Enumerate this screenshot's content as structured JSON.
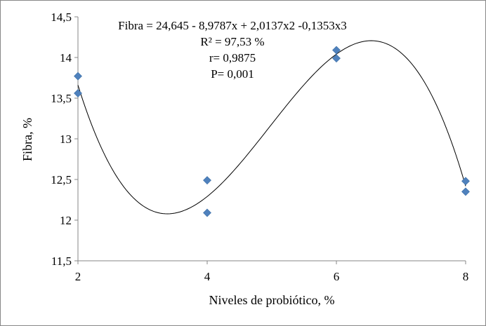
{
  "chart_data": {
    "type": "scatter",
    "xlabel": "Niveles de probiótico, %",
    "ylabel": "Fibra, %",
    "xlim": [
      2,
      8
    ],
    "ylim": [
      11.5,
      14.5
    ],
    "x_ticks": [
      2,
      4,
      6,
      8
    ],
    "y_ticks": [
      "11,5",
      "12",
      "12,5",
      "13",
      "13,5",
      "14",
      "14,5"
    ],
    "y_tick_values": [
      11.5,
      12,
      12.5,
      13,
      13.5,
      14,
      14.5
    ],
    "x_tick_labels": [
      "2",
      "4",
      "6",
      "8"
    ],
    "grid": false,
    "marker_color": "#4f81bd",
    "points": [
      {
        "x": 2,
        "y": 13.77
      },
      {
        "x": 2,
        "y": 13.56
      },
      {
        "x": 4,
        "y": 12.49
      },
      {
        "x": 4,
        "y": 12.09
      },
      {
        "x": 6,
        "y": 14.09
      },
      {
        "x": 6,
        "y": 13.99
      },
      {
        "x": 8,
        "y": 12.48
      },
      {
        "x": 8,
        "y": 12.35
      }
    ],
    "trendline": {
      "type": "polynomial",
      "coefficients": [
        24.645,
        -8.9787,
        2.0137,
        -0.1353
      ]
    },
    "annotations": [
      "Fibra = 24,645 - 8,9787x + 2,0137x2 -0,1353x3",
      "R² = 97,53 %",
      "r= 0,9875",
      "P= 0,001"
    ]
  }
}
